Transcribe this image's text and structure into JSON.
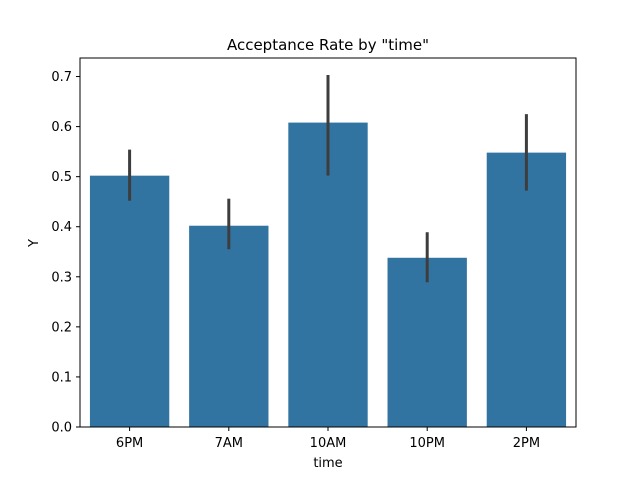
{
  "chart_data": {
    "type": "bar",
    "title": "Acceptance Rate by \"time\"",
    "xlabel": "time",
    "ylabel": "Y",
    "categories": [
      "6PM",
      "7AM",
      "10AM",
      "10PM",
      "2PM"
    ],
    "values": [
      0.502,
      0.402,
      0.608,
      0.338,
      0.548
    ],
    "error_low": [
      0.452,
      0.355,
      0.502,
      0.289,
      0.472
    ],
    "error_high": [
      0.554,
      0.456,
      0.703,
      0.389,
      0.625
    ],
    "ylim": [
      0,
      0.737
    ],
    "yticks": [
      "0.0",
      "0.1",
      "0.2",
      "0.3",
      "0.4",
      "0.5",
      "0.6",
      "0.7"
    ],
    "grid": false,
    "colors": {
      "bar": "#3274a1",
      "errorbar": "#3d3d3d",
      "axis": "#000000"
    }
  }
}
